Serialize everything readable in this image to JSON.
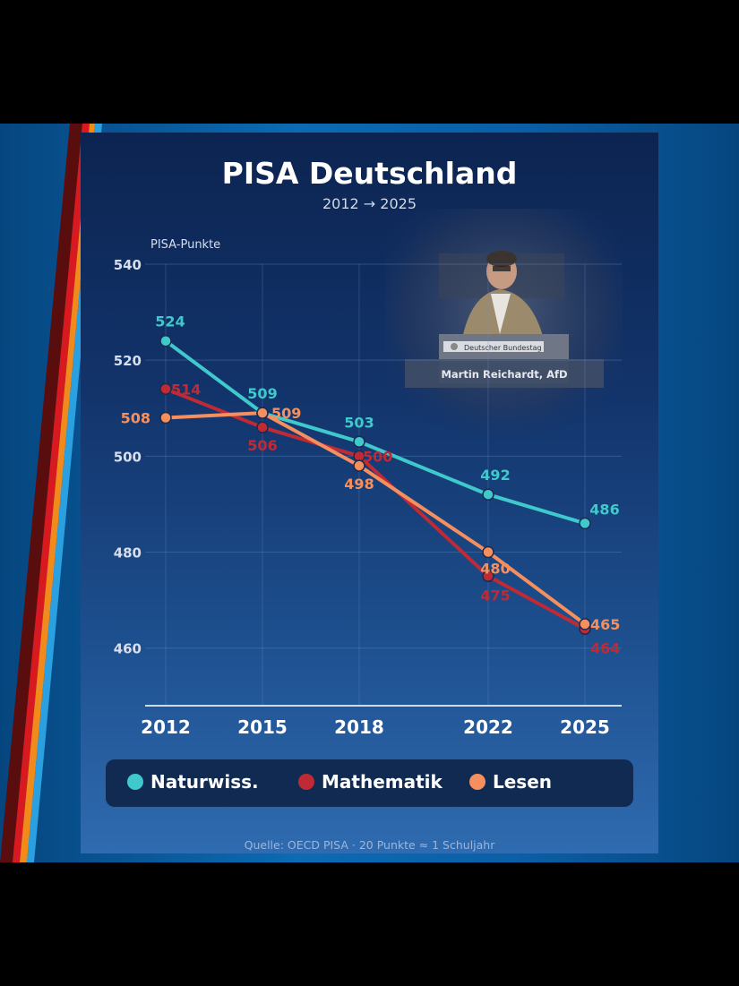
{
  "title": "PISA Deutschland",
  "subtitle": "2012  →  2025",
  "source": "Quelle: OECD PISA   ·   20 Punkte ≈ 1 Schuljahr",
  "inset": {
    "podium_label": "Deutscher Bundestag",
    "caption": "Martin Reichardt, AfD"
  },
  "chart_data": {
    "type": "line",
    "title": "PISA Deutschland",
    "subtitle": "2012  →  2025",
    "ylabel": "PISA-Punkte",
    "xlabel": "",
    "ylim": [
      448,
      540
    ],
    "yticks": [
      460,
      480,
      500,
      520,
      540
    ],
    "x": [
      2012,
      2015,
      2018,
      2022,
      2025
    ],
    "grid": true,
    "legend": "bottom",
    "series": [
      {
        "name": "Naturwiss.",
        "color": "#3fc9cc",
        "values": [
          524,
          509,
          503,
          492,
          486
        ]
      },
      {
        "name": "Mathematik",
        "color": "#c02a35",
        "values": [
          514,
          506,
          500,
          475,
          464
        ]
      },
      {
        "name": "Lesen",
        "color": "#f5905e",
        "values": [
          508,
          509,
          498,
          480,
          465
        ]
      }
    ]
  }
}
